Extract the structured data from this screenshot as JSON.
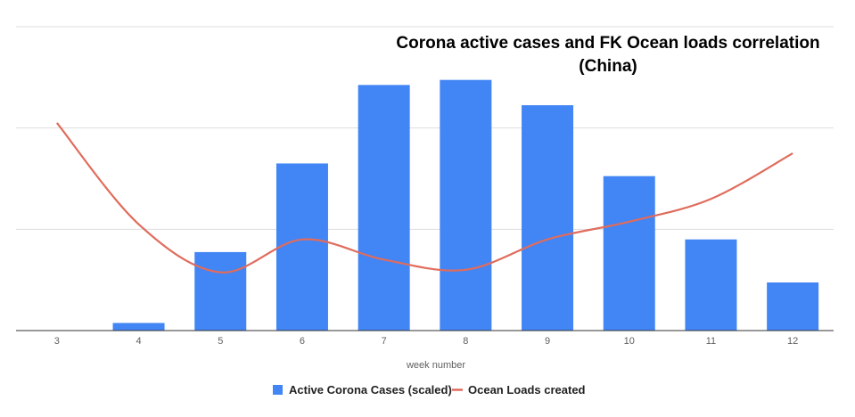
{
  "chart_data": {
    "type": "bar",
    "title_lines": [
      "Corona active cases and FK Ocean loads correlation",
      "(China)"
    ],
    "xlabel": "week number",
    "ylabel": "",
    "categories": [
      "3",
      "4",
      "5",
      "6",
      "7",
      "8",
      "9",
      "10",
      "11",
      "12"
    ],
    "series": [
      {
        "name": "Active Corona Cases (scaled)",
        "type": "bar",
        "color": "#4285f4",
        "values": [
          0,
          0.15,
          1.55,
          3.3,
          4.85,
          4.95,
          4.45,
          3.05,
          1.8,
          0.95
        ]
      },
      {
        "name": "Ocean Loads created",
        "type": "line",
        "smooth": true,
        "color": "#e06c5d",
        "values": [
          4.1,
          2.1,
          1.15,
          1.8,
          1.4,
          1.2,
          1.8,
          2.15,
          2.6,
          3.5
        ]
      }
    ],
    "ylim": [
      0,
      6
    ],
    "gridlines": [
      0,
      2,
      4,
      6
    ],
    "grid": true,
    "legend": "bottom"
  }
}
